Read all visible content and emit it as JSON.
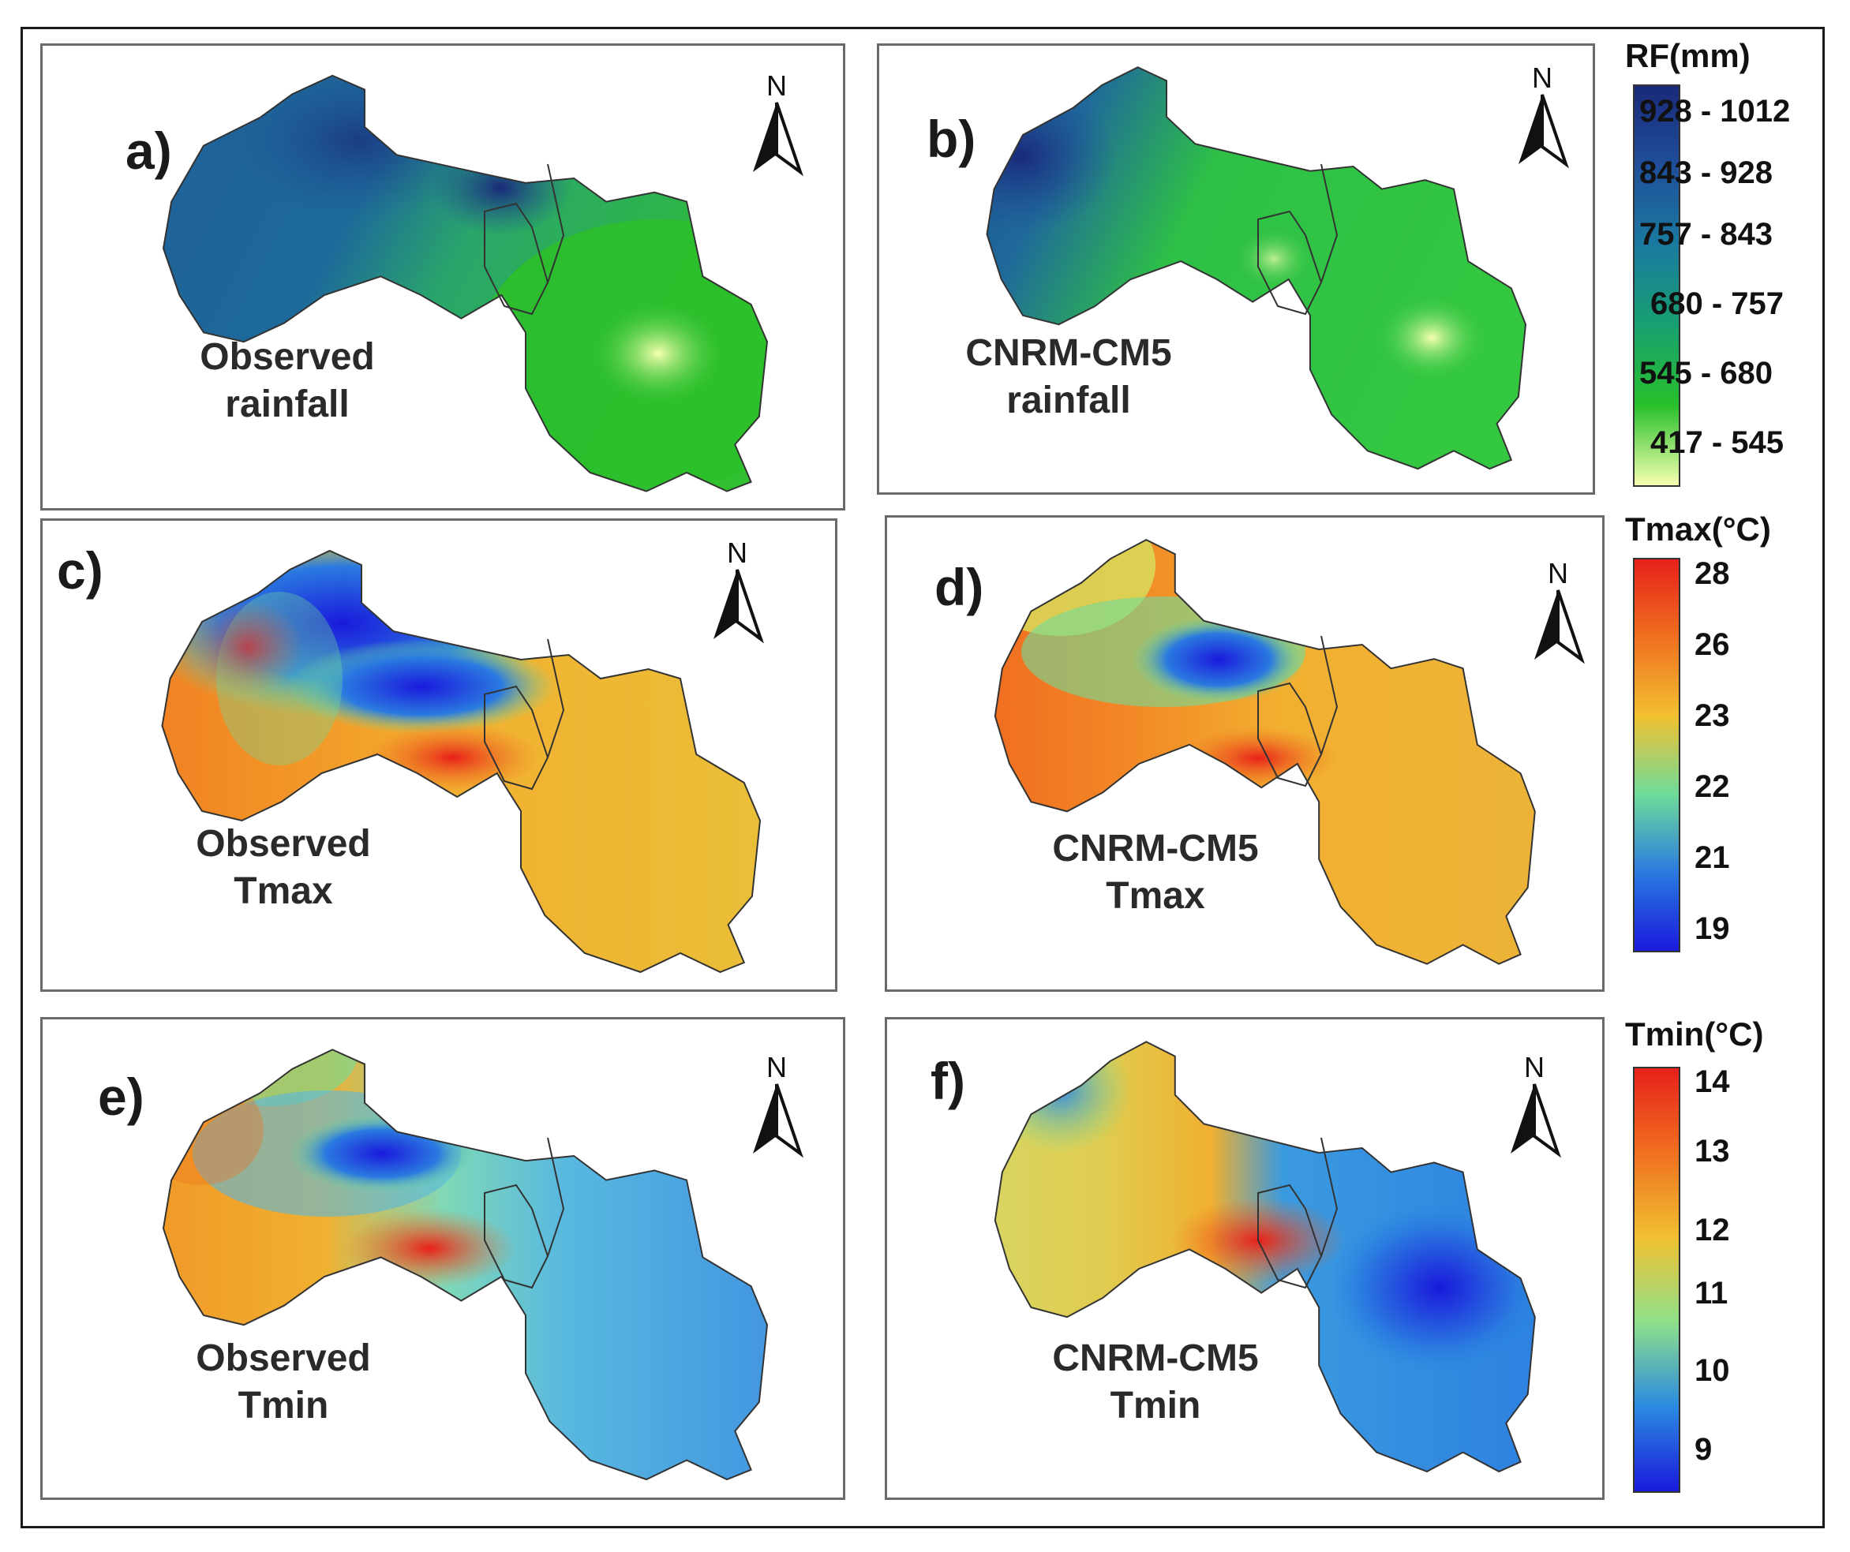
{
  "panels": [
    {
      "id": "a",
      "label": "a)",
      "title_line1": "Observed",
      "title_line2": "rainfall",
      "variable": "rainfall"
    },
    {
      "id": "b",
      "label": "b)",
      "title_line1": "CNRM-CM5",
      "title_line2": "rainfall",
      "variable": "rainfall"
    },
    {
      "id": "c",
      "label": "c)",
      "title_line1": "Observed",
      "title_line2": "Tmax",
      "variable": "tmax"
    },
    {
      "id": "d",
      "label": "d)",
      "title_line1": "CNRM-CM5",
      "title_line2": "Tmax",
      "variable": "tmax"
    },
    {
      "id": "e",
      "label": "e)",
      "title_line1": "Observed",
      "title_line2": "Tmin",
      "variable": "tmin"
    },
    {
      "id": "f",
      "label": "f)",
      "title_line1": "CNRM-CM5",
      "title_line2": "Tmin",
      "variable": "tmin"
    }
  ],
  "north_arrow_label": "N",
  "legends": {
    "rainfall": {
      "title": "RF(mm)",
      "classes": [
        "928 - 1012",
        "843 - 928",
        "757 - 843",
        "680 - 757",
        "545 - 680",
        "417 - 545"
      ],
      "colors": [
        "#1a2a7a",
        "#1f4f9a",
        "#1a7aa0",
        "#18a070",
        "#28c02a",
        "#f6ffb0"
      ]
    },
    "tmax": {
      "title": "Tmax(°C)",
      "ticks": [
        "28",
        "26",
        "23",
        "22",
        "21",
        "19"
      ],
      "colors": [
        "#e8201a",
        "#f07020",
        "#f2c030",
        "#6fdc9a",
        "#2a7ae0",
        "#1a1adc"
      ]
    },
    "tmin": {
      "title": "Tmin(°C)",
      "ticks": [
        "14",
        "13",
        "12",
        "11",
        "10",
        "9"
      ],
      "colors": [
        "#e8201a",
        "#f07020",
        "#f0c030",
        "#8fe08a",
        "#2a8ae0",
        "#1a1adc"
      ]
    }
  }
}
